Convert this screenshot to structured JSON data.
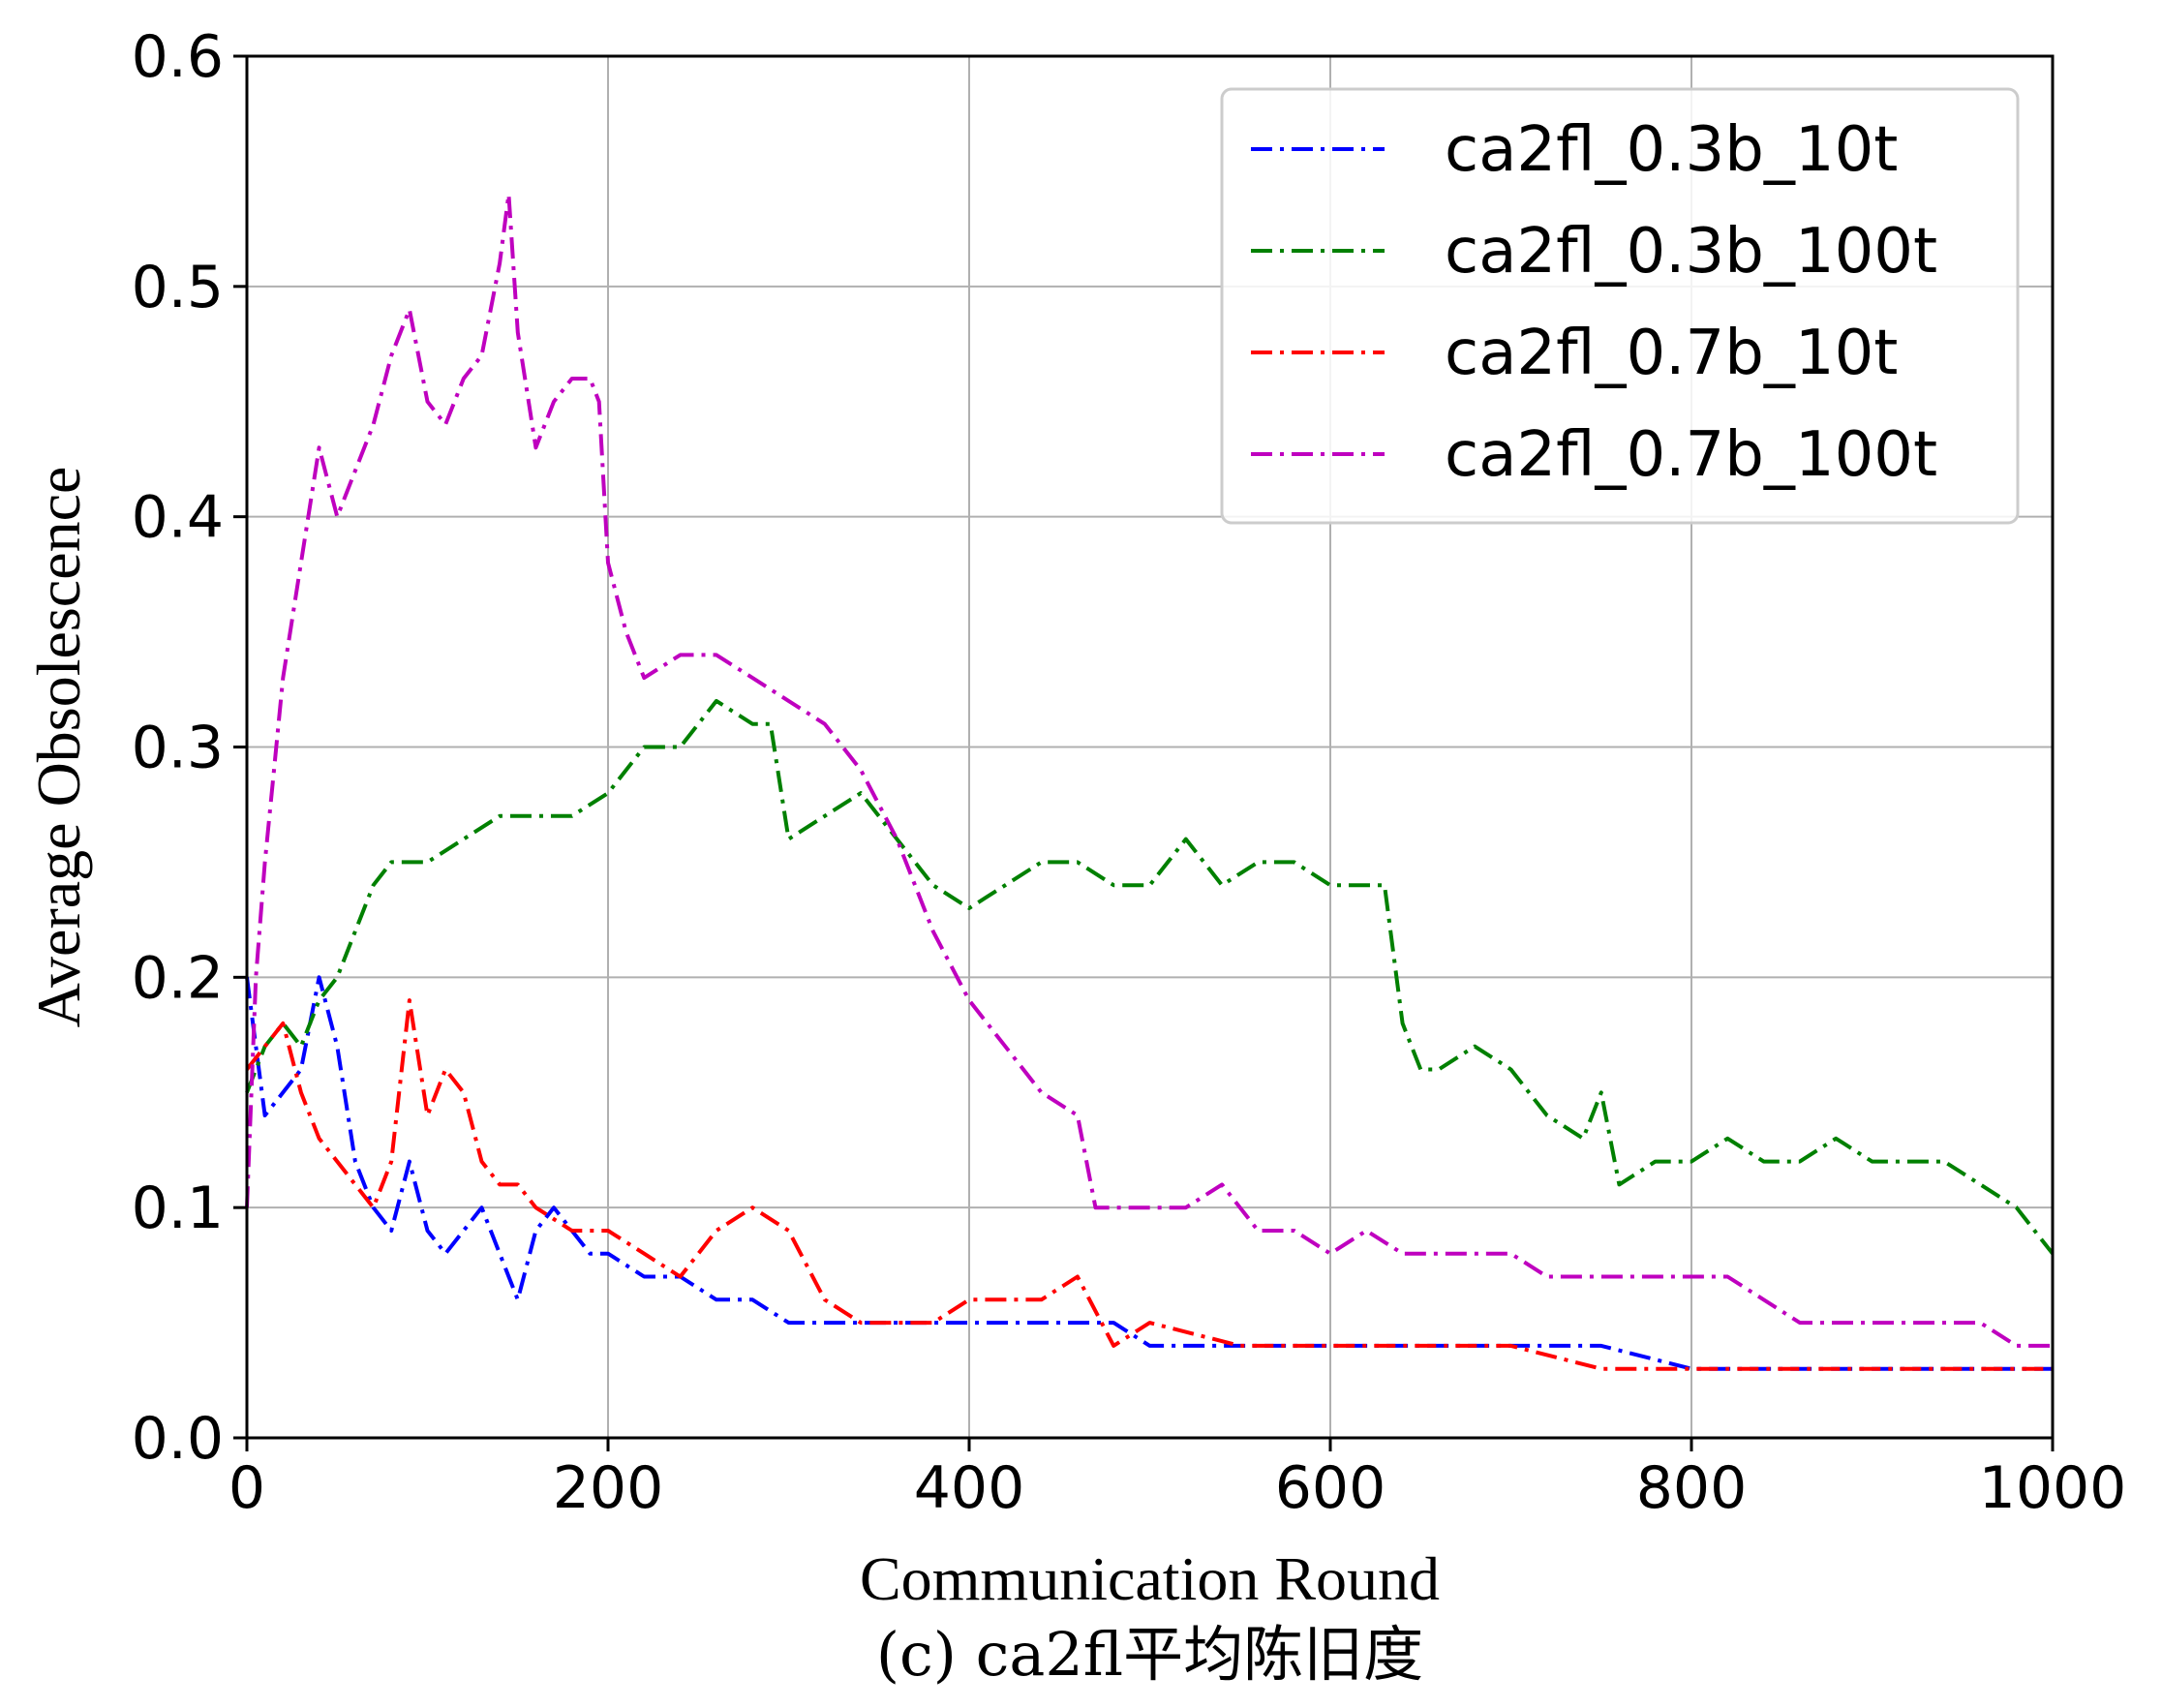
{
  "chart_data": {
    "type": "line",
    "xlabel": "Communication Round",
    "ylabel": "Average Obsolescence",
    "caption": "(c) ca2fl平均陈旧度",
    "xlim": [
      0,
      1000
    ],
    "ylim": [
      0,
      0.6
    ],
    "xticks": [
      "0",
      "200",
      "400",
      "600",
      "800",
      "1000"
    ],
    "yticks": [
      "0.0",
      "0.1",
      "0.2",
      "0.3",
      "0.4",
      "0.5",
      "0.6"
    ],
    "grid": true,
    "legend_position": "top-right",
    "line_style": "dash-dot",
    "series": [
      {
        "name": "ca2fl_0.3b_10t",
        "color": "#0000ff",
        "x": [
          0,
          10,
          20,
          30,
          40,
          50,
          60,
          70,
          80,
          90,
          100,
          110,
          120,
          130,
          140,
          150,
          160,
          170,
          180,
          190,
          200,
          220,
          240,
          260,
          280,
          300,
          320,
          340,
          360,
          380,
          400,
          420,
          440,
          460,
          480,
          500,
          550,
          600,
          650,
          700,
          750,
          800,
          850,
          900,
          950,
          1000
        ],
        "y": [
          0.2,
          0.14,
          0.15,
          0.16,
          0.2,
          0.17,
          0.12,
          0.1,
          0.09,
          0.12,
          0.09,
          0.08,
          0.09,
          0.1,
          0.08,
          0.06,
          0.09,
          0.1,
          0.09,
          0.08,
          0.08,
          0.07,
          0.07,
          0.06,
          0.06,
          0.05,
          0.05,
          0.05,
          0.05,
          0.05,
          0.05,
          0.05,
          0.05,
          0.05,
          0.05,
          0.04,
          0.04,
          0.04,
          0.04,
          0.04,
          0.04,
          0.03,
          0.03,
          0.03,
          0.03,
          0.03
        ]
      },
      {
        "name": "ca2fl_0.3b_100t",
        "color": "#008000",
        "x": [
          0,
          10,
          20,
          30,
          40,
          50,
          60,
          70,
          80,
          90,
          100,
          120,
          140,
          160,
          180,
          200,
          220,
          240,
          260,
          280,
          290,
          300,
          320,
          340,
          360,
          380,
          400,
          420,
          440,
          460,
          480,
          500,
          520,
          540,
          560,
          580,
          600,
          620,
          630,
          640,
          650,
          660,
          680,
          700,
          720,
          740,
          750,
          760,
          780,
          800,
          820,
          840,
          860,
          880,
          900,
          920,
          940,
          960,
          980,
          1000
        ],
        "y": [
          0.15,
          0.17,
          0.18,
          0.17,
          0.19,
          0.2,
          0.22,
          0.24,
          0.25,
          0.25,
          0.25,
          0.26,
          0.27,
          0.27,
          0.27,
          0.28,
          0.3,
          0.3,
          0.32,
          0.31,
          0.31,
          0.26,
          0.27,
          0.28,
          0.26,
          0.24,
          0.23,
          0.24,
          0.25,
          0.25,
          0.24,
          0.24,
          0.26,
          0.24,
          0.25,
          0.25,
          0.24,
          0.24,
          0.24,
          0.18,
          0.16,
          0.16,
          0.17,
          0.16,
          0.14,
          0.13,
          0.15,
          0.11,
          0.12,
          0.12,
          0.13,
          0.12,
          0.12,
          0.13,
          0.12,
          0.12,
          0.12,
          0.11,
          0.1,
          0.08
        ]
      },
      {
        "name": "ca2fl_0.7b_10t",
        "color": "#ff0000",
        "x": [
          0,
          10,
          20,
          30,
          40,
          50,
          60,
          70,
          80,
          90,
          100,
          110,
          120,
          130,
          140,
          150,
          160,
          180,
          200,
          220,
          240,
          260,
          280,
          300,
          320,
          340,
          360,
          380,
          400,
          420,
          440,
          460,
          480,
          500,
          550,
          600,
          650,
          700,
          750,
          800,
          850,
          900,
          950,
          1000
        ],
        "y": [
          0.16,
          0.17,
          0.18,
          0.15,
          0.13,
          0.12,
          0.11,
          0.1,
          0.12,
          0.19,
          0.14,
          0.16,
          0.15,
          0.12,
          0.11,
          0.11,
          0.1,
          0.09,
          0.09,
          0.08,
          0.07,
          0.09,
          0.1,
          0.09,
          0.06,
          0.05,
          0.05,
          0.05,
          0.06,
          0.06,
          0.06,
          0.07,
          0.04,
          0.05,
          0.04,
          0.04,
          0.04,
          0.04,
          0.03,
          0.03,
          0.03,
          0.03,
          0.03,
          0.03
        ]
      },
      {
        "name": "ca2fl_0.7b_100t",
        "color": "#bf00bf",
        "x": [
          0,
          5,
          10,
          15,
          20,
          30,
          40,
          50,
          60,
          70,
          80,
          90,
          100,
          110,
          120,
          130,
          140,
          145,
          150,
          160,
          170,
          180,
          190,
          195,
          200,
          210,
          220,
          240,
          260,
          280,
          300,
          320,
          340,
          360,
          380,
          400,
          420,
          440,
          460,
          470,
          480,
          500,
          520,
          540,
          560,
          580,
          600,
          620,
          640,
          660,
          680,
          700,
          720,
          740,
          760,
          780,
          800,
          820,
          840,
          860,
          880,
          900,
          920,
          940,
          960,
          980,
          1000
        ],
        "y": [
          0.1,
          0.2,
          0.25,
          0.29,
          0.33,
          0.38,
          0.43,
          0.4,
          0.42,
          0.44,
          0.47,
          0.49,
          0.45,
          0.44,
          0.46,
          0.47,
          0.51,
          0.54,
          0.48,
          0.43,
          0.45,
          0.46,
          0.46,
          0.45,
          0.38,
          0.35,
          0.33,
          0.34,
          0.34,
          0.33,
          0.32,
          0.31,
          0.29,
          0.26,
          0.22,
          0.19,
          0.17,
          0.15,
          0.14,
          0.1,
          0.1,
          0.1,
          0.1,
          0.11,
          0.09,
          0.09,
          0.08,
          0.09,
          0.08,
          0.08,
          0.08,
          0.08,
          0.07,
          0.07,
          0.07,
          0.07,
          0.07,
          0.07,
          0.06,
          0.05,
          0.05,
          0.05,
          0.05,
          0.05,
          0.05,
          0.04,
          0.04
        ]
      }
    ]
  }
}
